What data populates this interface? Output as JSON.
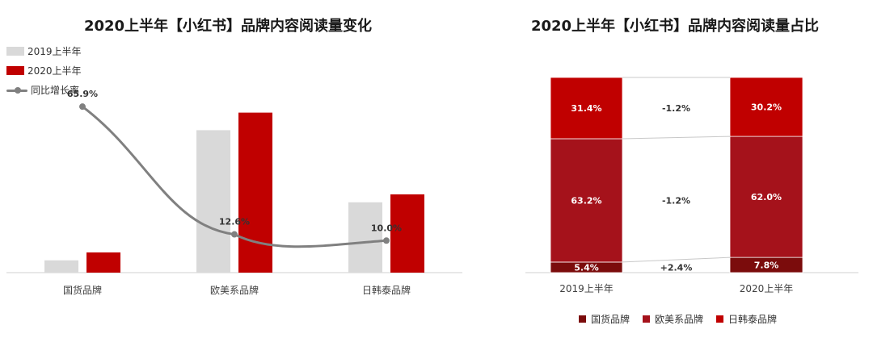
{
  "chart_data": [
    {
      "type": "bar",
      "title": "2020上半年【小红书】品牌内容阅读量变化",
      "categories": [
        "国货品牌",
        "欧美系品牌",
        "日韩泰品牌"
      ],
      "series": [
        {
          "name": "2019上半年",
          "values": [
            14,
            162,
            80
          ],
          "color": "#d9d9d9"
        },
        {
          "name": "2020上半年",
          "values": [
            23,
            182,
            89
          ],
          "color": "#c00000"
        }
      ],
      "line_series": {
        "name": "同比增长率",
        "values": [
          65.9,
          12.6,
          10.0
        ],
        "labels": [
          "65.9%",
          "12.6%",
          "10.0%"
        ],
        "color": "#808080"
      },
      "legend": "top-left"
    },
    {
      "type": "bar",
      "stacked": true,
      "percent": true,
      "title": "2020上半年【小红书】品牌内容阅读量占比",
      "categories": [
        "2019上半年",
        "2020上半年"
      ],
      "series": [
        {
          "name": "国货品牌",
          "values": [
            5.4,
            7.8
          ],
          "labels": [
            "5.4%",
            "7.8%"
          ],
          "color": "#7b0c0c"
        },
        {
          "name": "欧美系品牌",
          "values": [
            63.2,
            62.0
          ],
          "labels": [
            "63.2%",
            "62.0%"
          ],
          "color": "#a5121b"
        },
        {
          "name": "日韩泰品牌",
          "values": [
            31.4,
            30.2
          ],
          "labels": [
            "31.4%",
            "30.2%"
          ],
          "color": "#c00000"
        }
      ],
      "change_labels": [
        "+2.4%",
        "-1.2%",
        "-1.2%"
      ],
      "legend": "bottom"
    }
  ]
}
